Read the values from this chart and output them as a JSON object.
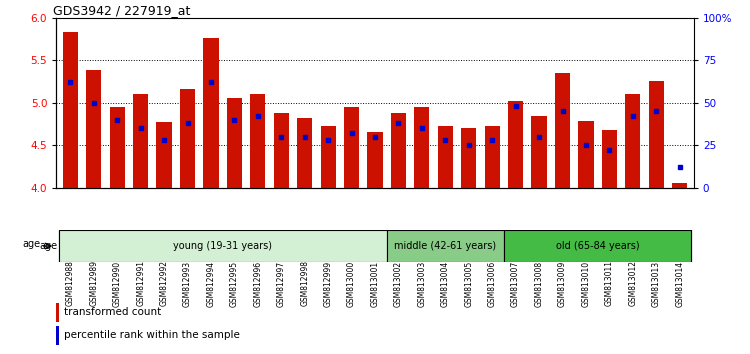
{
  "title": "GDS3942 / 227919_at",
  "samples": [
    "GSM812988",
    "GSM812989",
    "GSM812990",
    "GSM812991",
    "GSM812992",
    "GSM812993",
    "GSM812994",
    "GSM812995",
    "GSM812996",
    "GSM812997",
    "GSM812998",
    "GSM812999",
    "GSM813000",
    "GSM813001",
    "GSM813002",
    "GSM813003",
    "GSM813004",
    "GSM813005",
    "GSM813006",
    "GSM813007",
    "GSM813008",
    "GSM813009",
    "GSM813010",
    "GSM813011",
    "GSM813012",
    "GSM813013",
    "GSM813014"
  ],
  "transformed_count": [
    5.83,
    5.39,
    4.95,
    5.1,
    4.77,
    5.16,
    5.76,
    5.05,
    5.1,
    4.88,
    4.82,
    4.72,
    4.95,
    4.65,
    4.88,
    4.95,
    4.72,
    4.7,
    4.72,
    5.02,
    4.84,
    5.35,
    4.78,
    4.68,
    5.1,
    5.25,
    4.05
  ],
  "percentile_rank": [
    62,
    50,
    40,
    35,
    28,
    38,
    62,
    40,
    42,
    30,
    30,
    28,
    32,
    30,
    38,
    35,
    28,
    25,
    28,
    48,
    30,
    45,
    25,
    22,
    42,
    45,
    12
  ],
  "groups": [
    {
      "label": "young (19-31 years)",
      "start": 0,
      "end": 14,
      "color": "#d4f0d4"
    },
    {
      "label": "middle (42-61 years)",
      "start": 14,
      "end": 19,
      "color": "#88cc88"
    },
    {
      "label": "old (65-84 years)",
      "start": 19,
      "end": 27,
      "color": "#44bb44"
    }
  ],
  "ylim_left": [
    4.0,
    6.0
  ],
  "ylim_right": [
    0,
    100
  ],
  "yticks_left": [
    4.0,
    4.5,
    5.0,
    5.5,
    6.0
  ],
  "yticks_right": [
    0,
    25,
    50,
    75,
    100
  ],
  "bar_color": "#cc1100",
  "dot_color": "#0000cc",
  "background_color": "#ffffff",
  "tick_bg_color": "#cccccc",
  "title_fontsize": 9,
  "tick_fontsize": 6.5
}
